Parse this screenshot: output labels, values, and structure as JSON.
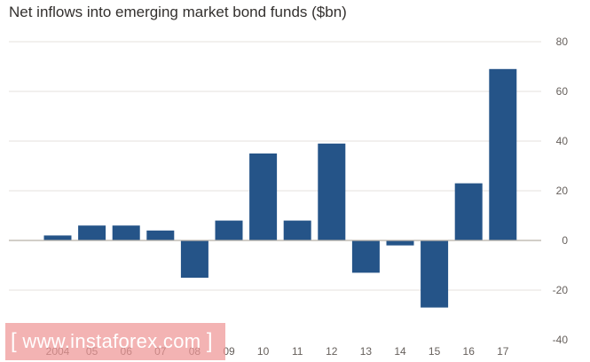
{
  "chart_data": {
    "type": "bar",
    "title": "Net inflows into emerging market bond funds ($bn)",
    "xlabel": "",
    "ylabel": "",
    "categories": [
      "2004",
      "05",
      "06",
      "07",
      "08",
      "09",
      "10",
      "11",
      "12",
      "13",
      "14",
      "15",
      "16",
      "17"
    ],
    "values": [
      2,
      6,
      6,
      4,
      -15,
      8,
      35,
      8,
      39,
      -13,
      -2,
      -27,
      23,
      69
    ],
    "ylim": [
      -40,
      80
    ],
    "yticks": [
      -40,
      -20,
      0,
      20,
      40,
      60,
      80
    ],
    "ytick_labels": [
      "-40",
      "-20",
      "0",
      "20",
      "40",
      "60",
      "80"
    ],
    "grid": true,
    "y_axis_position": "right",
    "bar_color": "#255488",
    "grid_color": "#e6e1dc",
    "zero_line_color": "#b8b0a8"
  },
  "watermark": {
    "open_bracket": "[",
    "text": " www.instaforex.com ",
    "close_bracket": "]"
  }
}
